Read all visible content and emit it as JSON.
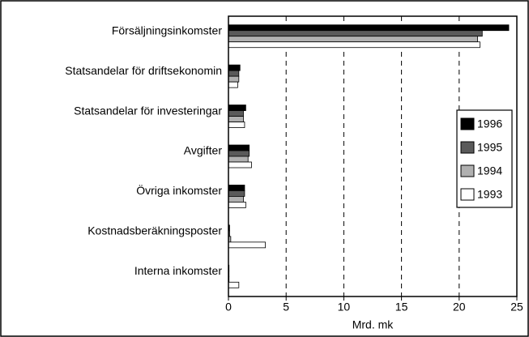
{
  "chart_data": {
    "type": "hbar",
    "xlabel": "Mrd. mk",
    "categories": [
      "Försäljningsinkomster",
      "Statsandelar för driftsekonomin",
      "Statsandelar för investeringar",
      "Avgifter",
      "Övriga inkomster",
      "Kostnadsberäkningsposter",
      "Interna inkomster"
    ],
    "series": [
      {
        "name": "1996",
        "color": "#000000",
        "values": [
          24.3,
          1.0,
          1.5,
          1.8,
          1.4,
          0.1,
          0.05
        ]
      },
      {
        "name": "1995",
        "color": "#5a5a5a",
        "values": [
          22.0,
          0.9,
          1.3,
          1.8,
          1.4,
          0.1,
          0.05
        ]
      },
      {
        "name": "1994",
        "color": "#b0b0b0",
        "values": [
          21.6,
          0.9,
          1.3,
          1.7,
          1.3,
          0.2,
          0.05
        ]
      },
      {
        "name": "1993",
        "color": "#ffffff",
        "values": [
          21.8,
          0.8,
          1.4,
          2.0,
          1.5,
          3.2,
          0.9
        ]
      }
    ],
    "xlim": [
      0,
      25
    ],
    "xticks": [
      0,
      5,
      10,
      15,
      20,
      25
    ],
    "grid": true,
    "legend": "right"
  }
}
